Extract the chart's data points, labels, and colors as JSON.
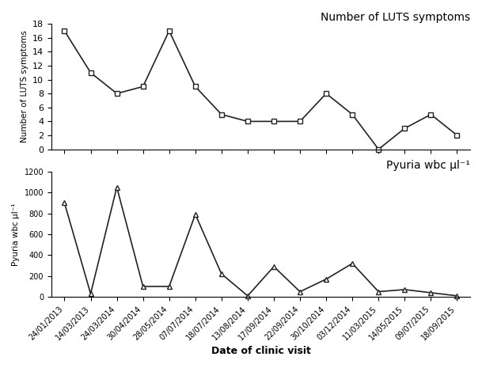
{
  "all_dates": [
    "24/01/2013",
    "14/03/2013",
    "24/03/2014",
    "30/04/2014",
    "28/05/2014",
    "07/07/2014",
    "18/07/2014",
    "13/08/2014",
    "17/09/2014",
    "22/09/2014",
    "30/10/2014",
    "03/12/2014",
    "11/03/2015",
    "14/05/2015",
    "09/07/2015",
    "18/09/2015"
  ],
  "luts_values": [
    17,
    11,
    8,
    9,
    17,
    9,
    5,
    4,
    4,
    4,
    8,
    5,
    0,
    3,
    5,
    2
  ],
  "pyuria_values": [
    900,
    30,
    1050,
    100,
    100,
    790,
    220,
    10,
    290,
    50,
    170,
    320,
    50,
    70,
    40,
    10
  ],
  "title_luts": "Number of LUTS symptoms",
  "title_pyuria": "Pyuria wbc μl⁻¹",
  "ylabel_luts": "Number of LUTS symptoms",
  "ylabel_pyuria": "Pyuria wbc μl⁻¹",
  "xlabel": "Date of clinic visit",
  "luts_ylim": [
    0,
    18
  ],
  "pyuria_ylim": [
    0,
    1200
  ],
  "luts_yticks": [
    0,
    2,
    4,
    6,
    8,
    10,
    12,
    14,
    16,
    18
  ],
  "pyuria_yticks": [
    0,
    200,
    400,
    600,
    800,
    1000,
    1200
  ],
  "line_color": "#222222",
  "bg_color": "#ffffff",
  "marker_luts": "s",
  "marker_pyuria": "^",
  "marker_size": 5,
  "line_width": 1.2
}
